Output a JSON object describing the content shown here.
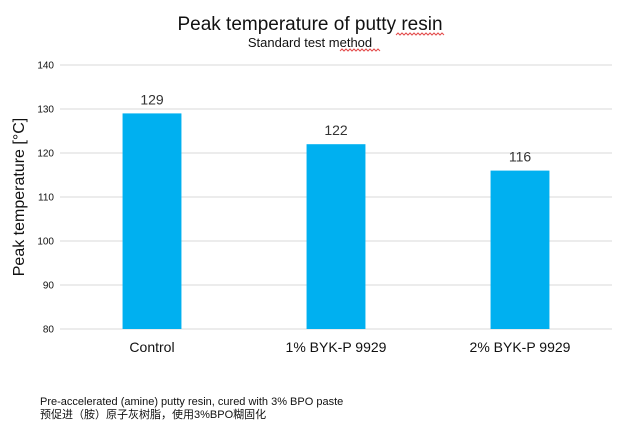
{
  "chart_data": {
    "type": "bar",
    "title": "Peak temperature of putty resin",
    "subtitle": "Standard test method",
    "xlabel": "",
    "ylabel": "Peak temperature [°C]",
    "categories": [
      "Control",
      "1% BYK-P 9929",
      "2% BYK-P 9929"
    ],
    "values": [
      129,
      122,
      116
    ],
    "ylim": [
      80,
      140
    ],
    "yticks": [
      80,
      90,
      100,
      110,
      120,
      130,
      140
    ],
    "grid": true,
    "legend": "none",
    "bar_color": "#00b0f0"
  },
  "footnote": {
    "line1": "Pre-accelerated (amine) putty resin, cured with 3% BPO paste",
    "line2": "预促进（胺）原子灰树脂，使用3%BPO糊固化"
  }
}
